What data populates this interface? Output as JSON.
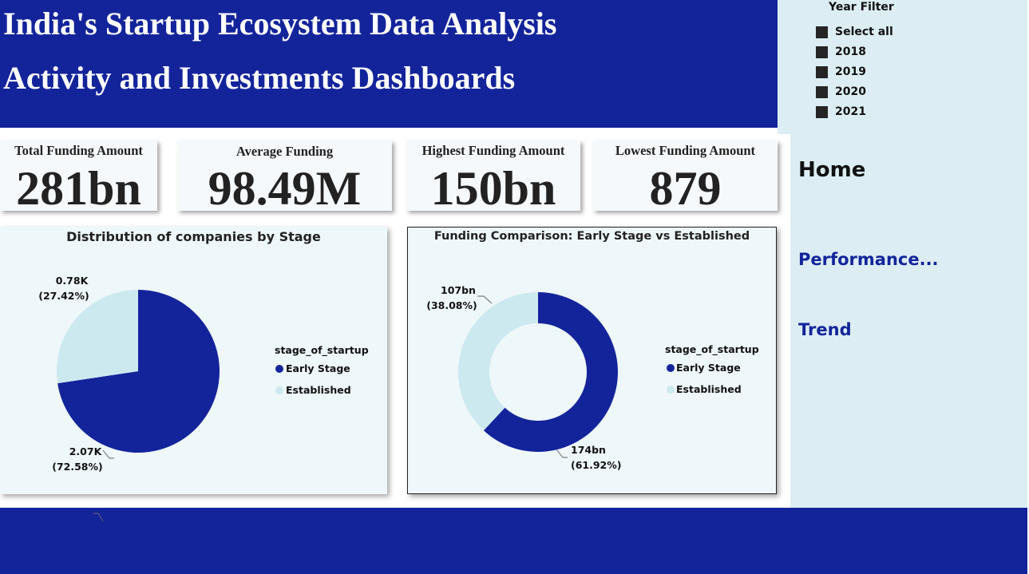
{
  "header": {
    "title_line1": "India's Startup Ecosystem Data Analysis",
    "title_line2": "Activity and Investments Dashboards"
  },
  "year_filter": {
    "title": "Year Filter",
    "items": [
      {
        "label": "Select all",
        "checked": true
      },
      {
        "label": "2018",
        "checked": true
      },
      {
        "label": "2019",
        "checked": true
      },
      {
        "label": "2020",
        "checked": true
      },
      {
        "label": "2021",
        "checked": true
      }
    ]
  },
  "kpis": [
    {
      "label": "Total Funding Amount",
      "value": "281bn"
    },
    {
      "label": "Average Funding",
      "value": "98.49M"
    },
    {
      "label": "Highest Funding Amount",
      "value": "150bn"
    },
    {
      "label": "Lowest Funding Amount",
      "value": "879"
    }
  ],
  "nav": {
    "home": "Home",
    "performance": "Performance...",
    "trend": "Trend"
  },
  "colors": {
    "early_stage": "#13249b",
    "established": "#cde9f0"
  },
  "chart_data": [
    {
      "type": "pie",
      "title": "Distribution of companies by Stage",
      "legend_title": "stage_of_startup",
      "legend_position": "right",
      "categories": [
        "Early Stage",
        "Established"
      ],
      "values": [
        2.07,
        0.78
      ],
      "value_labels": [
        "2.07K",
        "0.78K"
      ],
      "percent_labels": [
        "(72.58%)",
        "(27.42%)"
      ],
      "percents": [
        72.58,
        27.42
      ]
    },
    {
      "type": "pie",
      "subtype": "donut",
      "title": "Funding Comparison: Early Stage vs Established",
      "legend_title": "stage_of_startup",
      "legend_position": "right",
      "categories": [
        "Early Stage",
        "Established"
      ],
      "values": [
        174,
        107
      ],
      "value_labels": [
        "174bn",
        "107bn"
      ],
      "percent_labels": [
        "(61.92%)",
        "(38.08%)"
      ],
      "percents": [
        61.92,
        38.08
      ]
    }
  ]
}
